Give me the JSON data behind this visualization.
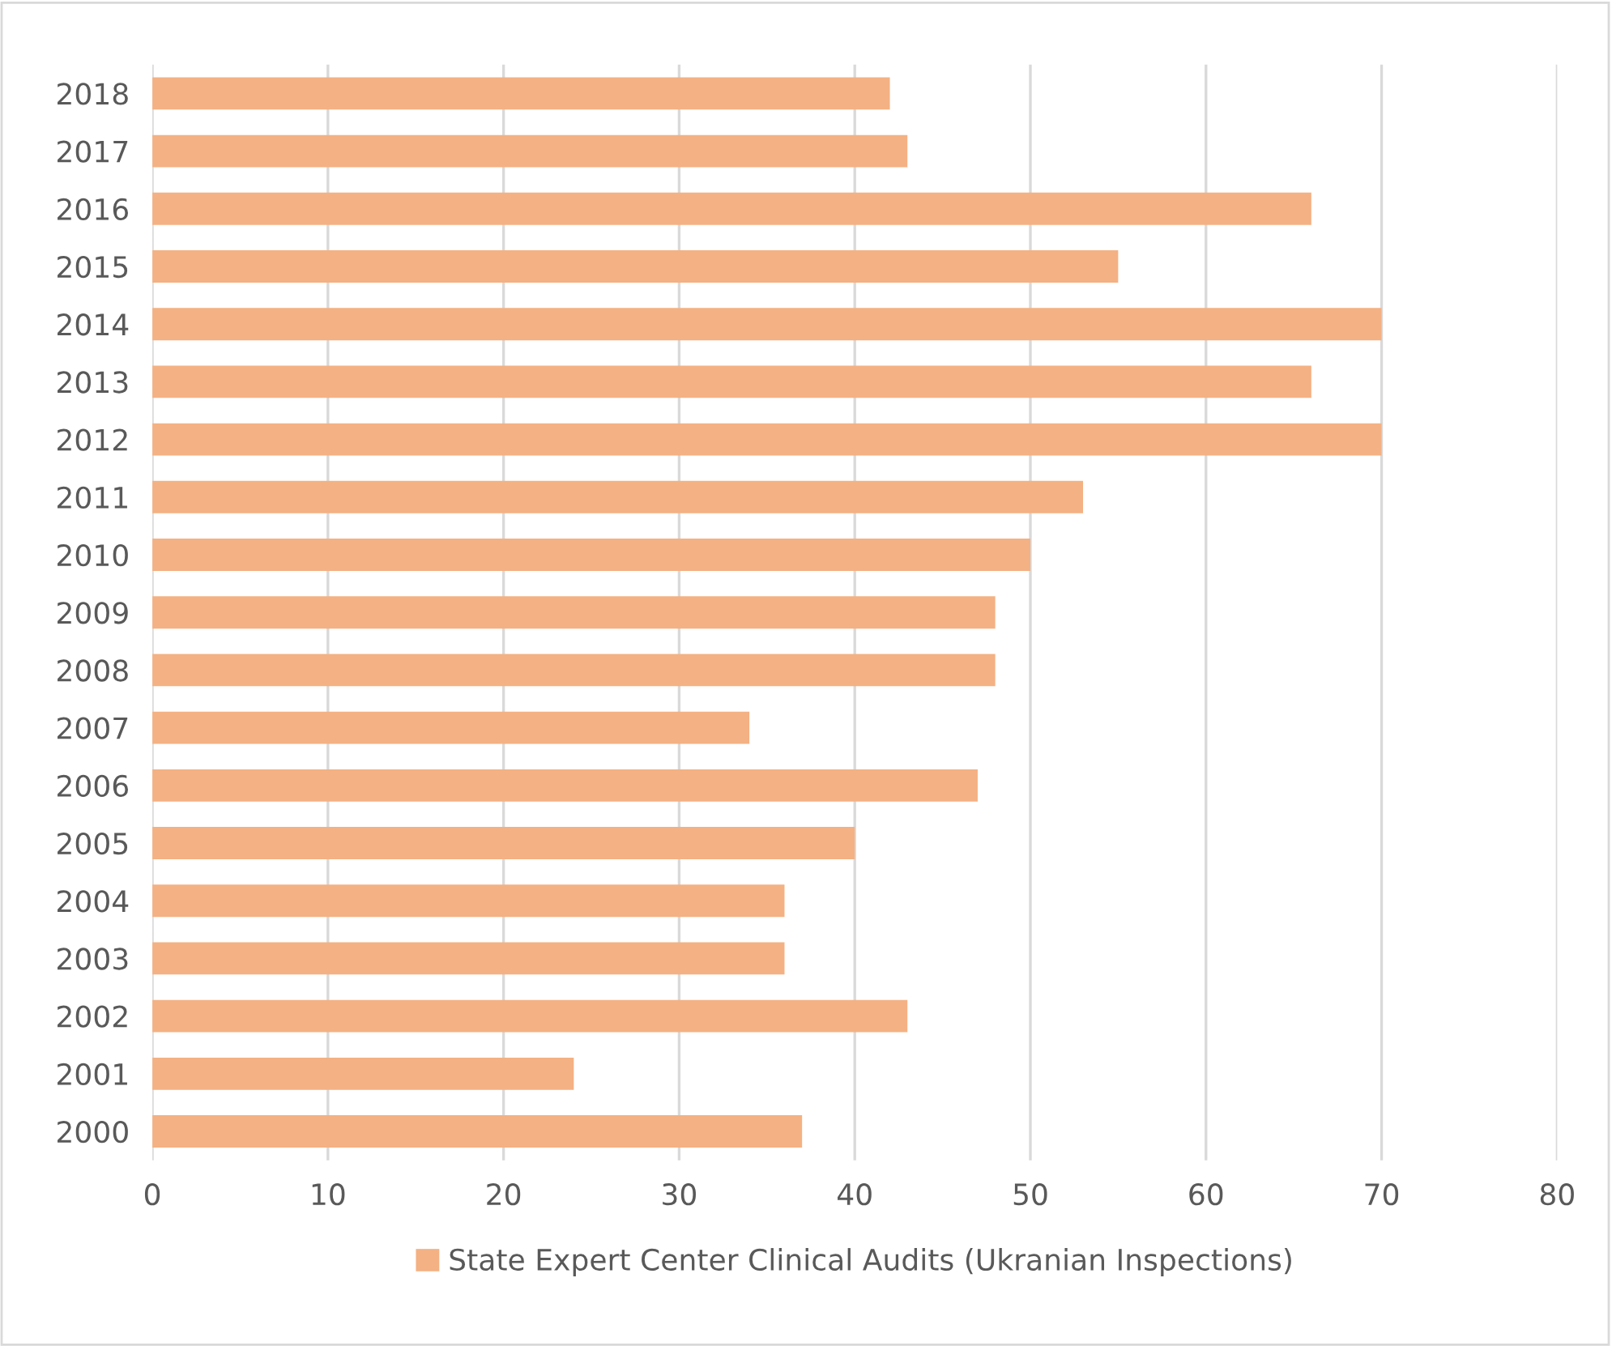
{
  "chart_data": {
    "type": "bar",
    "orientation": "horizontal",
    "categories": [
      "2018",
      "2017",
      "2016",
      "2015",
      "2014",
      "2013",
      "2012",
      "2011",
      "2010",
      "2009",
      "2008",
      "2007",
      "2006",
      "2005",
      "2004",
      "2003",
      "2002",
      "2001",
      "2000"
    ],
    "series": [
      {
        "name": "State Expert Center Clinical Audits (Ukranian Inspections)",
        "color": "#f4b183",
        "values": [
          42,
          43,
          66,
          55,
          70,
          66,
          70,
          53,
          50,
          48,
          48,
          34,
          47,
          40,
          36,
          36,
          43,
          24,
          37
        ]
      }
    ],
    "xlim": [
      0,
      80
    ],
    "xticks": [
      0,
      10,
      20,
      30,
      40,
      50,
      60,
      70,
      80
    ],
    "grid": "x",
    "legend": "bottom"
  }
}
